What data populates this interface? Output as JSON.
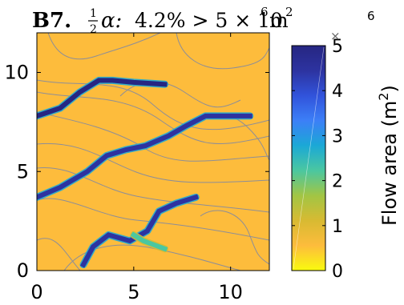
{
  "chart_data": {
    "type": "heatmap",
    "title": {
      "panel": "B7.",
      "alpha_frac_num": "1",
      "alpha_frac_den": "2",
      "alpha": "α:",
      "percent": "4.2% > 5 × 10",
      "exponent": "6",
      "unit": "m",
      "unit_exponent": "2"
    },
    "x_ticks": [
      "0",
      "5",
      "10"
    ],
    "y_ticks": [
      "0",
      "5",
      "10"
    ],
    "xlim": [
      0,
      12
    ],
    "ylim": [
      0,
      12
    ],
    "colorbar": {
      "label": "Flow area (m",
      "label_exponent": "2",
      "label_close": ")",
      "ticks": [
        "0",
        "1",
        "2",
        "3",
        "4",
        "5"
      ],
      "range": [
        0,
        5
      ],
      "multiplier_symbol": "×",
      "multiplier_exponent": "6",
      "colormap": [
        "#f9fb0e",
        "#fdbc3c",
        "#d8ba32",
        "#a2c544",
        "#4bc7a0",
        "#1ba8d6",
        "#3c7ff7",
        "#3153db",
        "#2d33a0",
        "#262682"
      ]
    },
    "background_value": 0.3,
    "channels": [
      {
        "name": "",
        "value": 4.8,
        "points": [
          [
            0,
            7.8
          ],
          [
            1.2,
            8.2
          ],
          [
            2.2,
            9.0
          ],
          [
            3.2,
            9.6
          ],
          [
            3.9,
            9.6
          ],
          [
            5.0,
            9.5
          ],
          [
            6.6,
            9.4
          ]
        ]
      },
      {
        "name": "",
        "value": 4.6,
        "points": [
          [
            0,
            3.7
          ],
          [
            1.2,
            4.2
          ],
          [
            2.6,
            5.0
          ],
          [
            3.6,
            5.8
          ],
          [
            4.6,
            6.1
          ],
          [
            5.6,
            6.3
          ],
          [
            6.8,
            6.8
          ],
          [
            7.7,
            7.3
          ],
          [
            8.7,
            7.8
          ],
          [
            11.0,
            7.8
          ]
        ]
      },
      {
        "name": "",
        "value": 4.3,
        "points": [
          [
            2.4,
            0.3
          ],
          [
            2.9,
            1.2
          ],
          [
            3.7,
            1.8
          ],
          [
            4.8,
            1.5
          ],
          [
            5.7,
            2.0
          ],
          [
            6.3,
            3.0
          ],
          [
            7.2,
            3.4
          ],
          [
            8.2,
            3.7
          ]
        ]
      },
      {
        "name": "",
        "value": 2.2,
        "points": [
          [
            5.0,
            1.8
          ],
          [
            5.5,
            1.5
          ],
          [
            6.6,
            1.1
          ]
        ]
      }
    ]
  }
}
